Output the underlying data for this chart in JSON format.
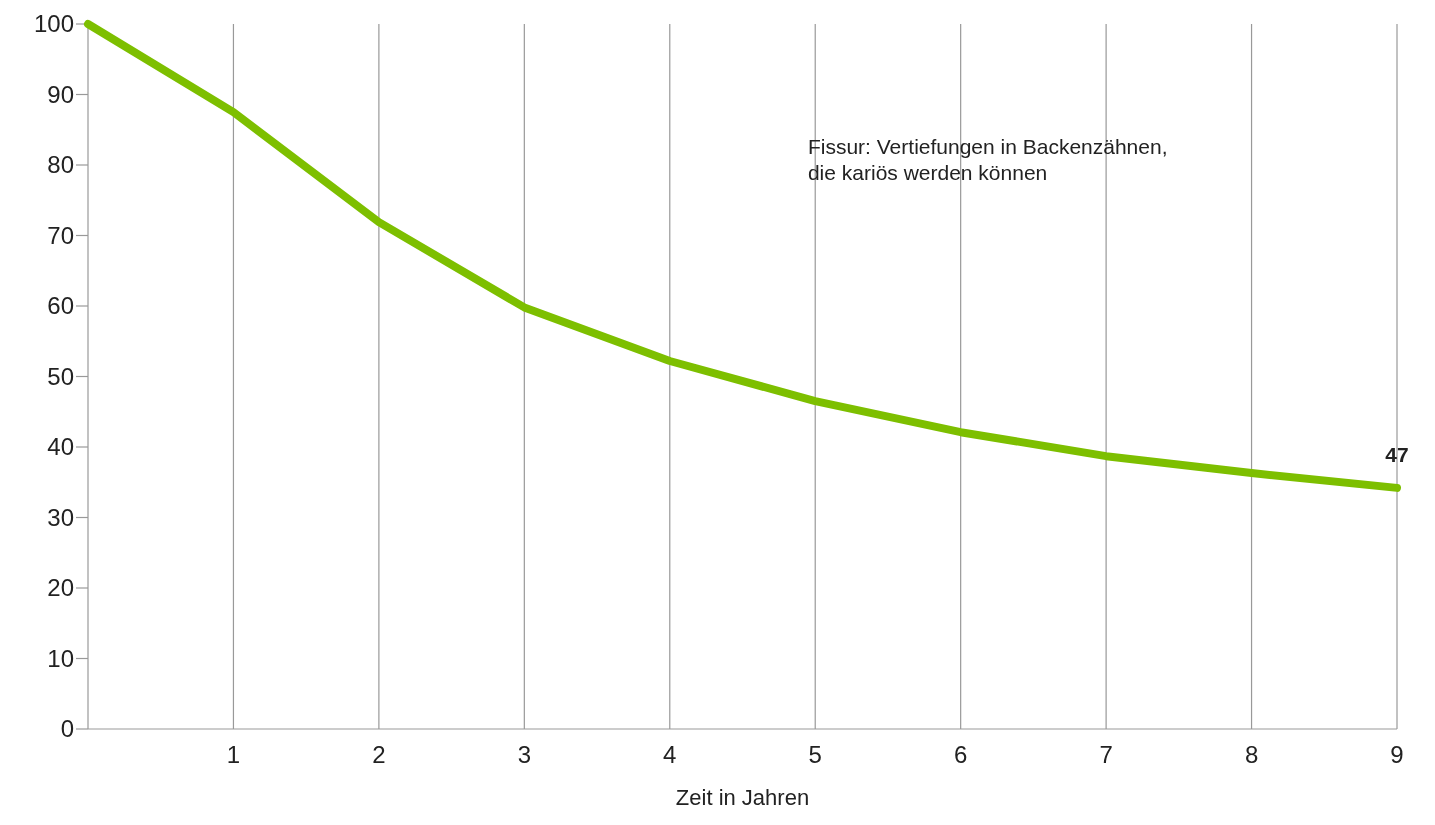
{
  "chart_data": {
    "type": "line",
    "xlabel": "Zeit in Jahren",
    "x": [
      0,
      1,
      2,
      3,
      4,
      5,
      6,
      7,
      8,
      9
    ],
    "series": [
      {
        "color": "#7dbf00",
        "values": [
          100,
          87.5,
          71.9,
          59.8,
          52.2,
          46.5,
          42.1,
          38.7,
          36.3,
          34.2
        ]
      }
    ],
    "xlim": [
      0,
      9
    ],
    "xticks": [
      1,
      2,
      3,
      4,
      5,
      6,
      7,
      8,
      9
    ],
    "ylim": [
      0,
      100
    ],
    "yticks": [
      0,
      10,
      20,
      30,
      40,
      50,
      60,
      70,
      80,
      90,
      100
    ],
    "grid": "x",
    "marker": "none",
    "line_style": "solid",
    "annotations": [
      "Fissur: Vertiefungen in Backenzähnen,\ndie kariös werden können",
      {
        "text": "47",
        "x": 9,
        "y": 34.2
      }
    ]
  }
}
